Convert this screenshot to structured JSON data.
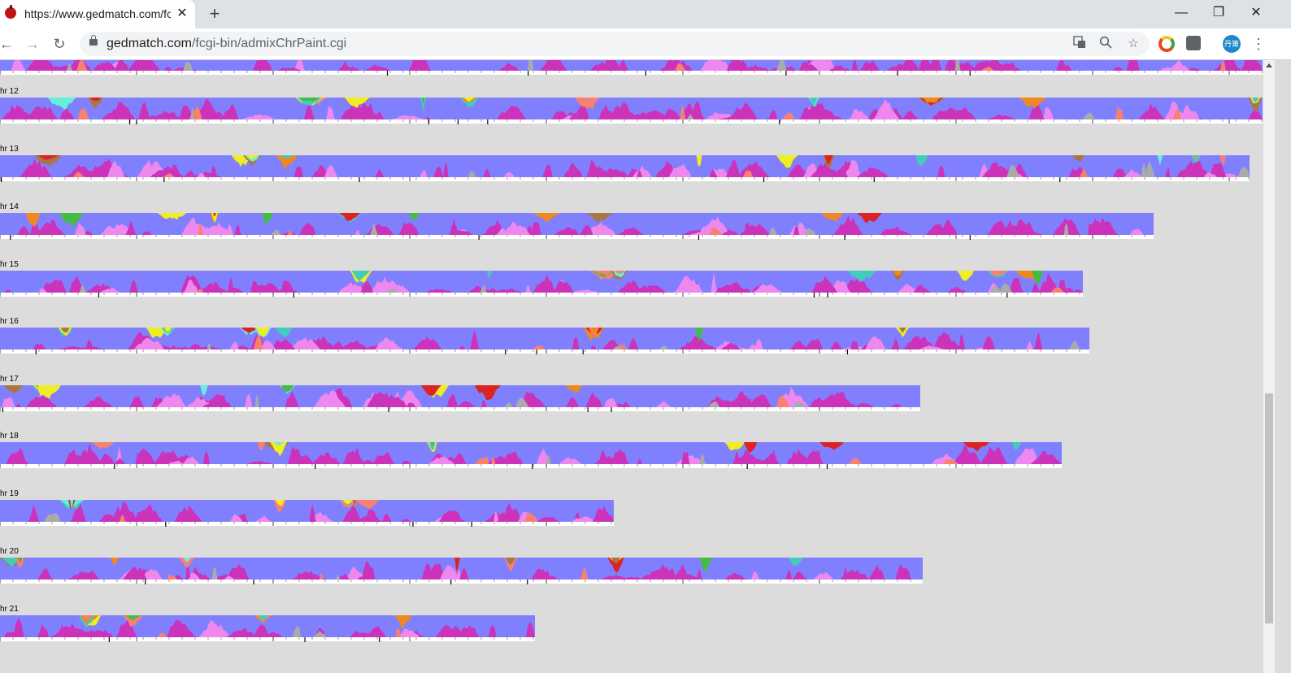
{
  "browser": {
    "tab_title": "https://www.gedmatch.com/fcgi-bin/admixChrPaint.cgi",
    "tab_close": "✕",
    "new_tab": "+",
    "url_host": "gedmatch.com",
    "url_path": "/fcgi-bin/admixChrPaint.cgi",
    "avatar_text": "丹第",
    "window_controls": {
      "minimize": "—",
      "restore": "❐",
      "close": "✕"
    },
    "nav": {
      "back": "←",
      "forward": "→",
      "reload": "↻"
    },
    "icons": [
      "translate-icon",
      "zoom-icon",
      "star-icon",
      "chrome-extension-icon",
      "tab-manager-icon",
      "profile-avatar",
      "menu-icon"
    ]
  },
  "colors": {
    "base": "#8080ff",
    "magenta": "#cc33bb",
    "light_pink": "#ee88ee",
    "salmon": "#f88070",
    "teal": "#44ccbb",
    "aqua": "#66eedd",
    "yellow": "#eeee22",
    "orange": "#ee8822",
    "red": "#dd2222",
    "green": "#44bb44",
    "brown": "#aa7744",
    "gray": "#aaaaaa",
    "background": "#dcdcdc"
  },
  "chromosomes": [
    {
      "label": "",
      "rel_length": 1.0
    },
    {
      "label": "hr 12",
      "rel_length": 1.0
    },
    {
      "label": "hr 13",
      "rel_length": 0.99
    },
    {
      "label": "hr 14",
      "rel_length": 0.914
    },
    {
      "label": "hr 15",
      "rel_length": 0.858
    },
    {
      "label": "hr 16",
      "rel_length": 0.863
    },
    {
      "label": "hr 17",
      "rel_length": 0.729
    },
    {
      "label": "hr 18",
      "rel_length": 0.841
    },
    {
      "label": "hr 19",
      "rel_length": 0.486
    },
    {
      "label": "hr 20",
      "rel_length": 0.731
    },
    {
      "label": "hr 21",
      "rel_length": 0.424
    }
  ]
}
